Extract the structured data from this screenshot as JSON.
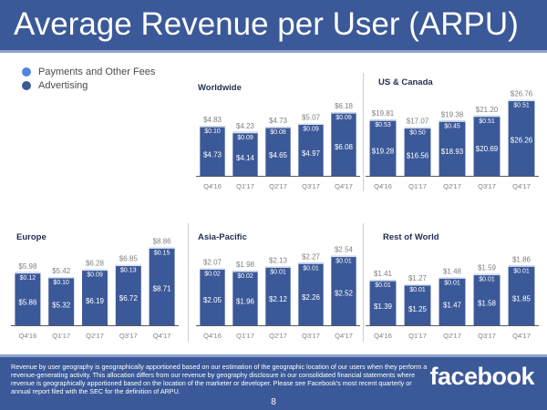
{
  "header": {
    "title": "Average Revenue per User (ARPU)"
  },
  "legend": [
    {
      "label": "Payments and Other Fees",
      "color": "#4f86e0"
    },
    {
      "label": "Advertising",
      "color": "#3b5998"
    }
  ],
  "colors": {
    "brand": "#3b5998",
    "advertising": "#3b5998",
    "payments": "#d9e4f7",
    "bar_label": "#ffffff",
    "total_label": "#7f7f7f",
    "axis": "#595959",
    "tick_label": "#7f7f7f",
    "panel_title": "#1f2d4d"
  },
  "chart_data": [
    {
      "type": "bar",
      "stacked": true,
      "title": "Worldwide",
      "categories": [
        "Q4'16",
        "Q1'17",
        "Q2'17",
        "Q3'17",
        "Q4'17"
      ],
      "series": [
        {
          "name": "Advertising",
          "values": [
            4.73,
            4.14,
            4.65,
            4.97,
            6.08
          ],
          "labels": [
            "$4.73",
            "$4.14",
            "$4.65",
            "$4.97",
            "$6.08"
          ]
        },
        {
          "name": "Payments and Other Fees",
          "values": [
            0.1,
            0.09,
            0.08,
            0.09,
            0.09
          ],
          "labels": [
            "$0.10",
            "$0.09",
            "$0.08",
            "$0.09",
            "$0.09"
          ]
        }
      ],
      "totals": [
        4.83,
        4.23,
        4.73,
        5.07,
        6.18
      ],
      "total_labels": [
        "$4.83",
        "$4.23",
        "$4.73",
        "$5.07",
        "$6.18"
      ],
      "xlabel": "",
      "ylabel": "",
      "grid": false
    },
    {
      "type": "bar",
      "stacked": true,
      "title": "US & Canada",
      "categories": [
        "Q4'16",
        "Q1'17",
        "Q2'17",
        "Q3'17",
        "Q4'17"
      ],
      "series": [
        {
          "name": "Advertising",
          "values": [
            19.28,
            16.56,
            18.93,
            20.69,
            26.26
          ],
          "labels": [
            "$19.28",
            "$16.56",
            "$18.93",
            "$20.69",
            "$26.26"
          ]
        },
        {
          "name": "Payments and Other Fees",
          "values": [
            0.53,
            0.5,
            0.45,
            0.51,
            0.51
          ],
          "labels": [
            "$0.53",
            "$0.50",
            "$0.45",
            "$0.51",
            "$0.51"
          ]
        }
      ],
      "totals": [
        19.81,
        17.07,
        19.38,
        21.2,
        26.76
      ],
      "total_labels": [
        "$19.81",
        "$17.07",
        "$19.38",
        "$21.20",
        "$26.76"
      ],
      "xlabel": "",
      "ylabel": "",
      "grid": false
    },
    {
      "type": "bar",
      "stacked": true,
      "title": "Europe",
      "categories": [
        "Q4'16",
        "Q1'17",
        "Q2'17",
        "Q3'17",
        "Q4'17"
      ],
      "series": [
        {
          "name": "Advertising",
          "values": [
            5.86,
            5.32,
            6.19,
            6.72,
            8.71
          ],
          "labels": [
            "$5.86",
            "$5.32",
            "$6.19",
            "$6.72",
            "$8.71"
          ]
        },
        {
          "name": "Payments and Other Fees",
          "values": [
            0.12,
            0.1,
            0.09,
            0.13,
            0.15
          ],
          "labels": [
            "$0.12",
            "$0.10",
            "$0.09",
            "$0.13",
            "$0.15"
          ]
        }
      ],
      "totals": [
        5.98,
        5.42,
        6.28,
        6.85,
        8.86
      ],
      "total_labels": [
        "$5.98",
        "$5.42",
        "$6.28",
        "$6.85",
        "$8.86"
      ],
      "xlabel": "",
      "ylabel": "",
      "grid": false
    },
    {
      "type": "bar",
      "stacked": true,
      "title": "Asia-Pacific",
      "categories": [
        "Q4'16",
        "Q1'17",
        "Q2'17",
        "Q3'17",
        "Q4'17"
      ],
      "series": [
        {
          "name": "Advertising",
          "values": [
            2.05,
            1.96,
            2.12,
            2.26,
            2.52
          ],
          "labels": [
            "$2.05",
            "$1.96",
            "$2.12",
            "$2.26",
            "$2.52"
          ]
        },
        {
          "name": "Payments and Other Fees",
          "values": [
            0.02,
            0.02,
            0.01,
            0.01,
            0.01
          ],
          "labels": [
            "$0.02",
            "$0.02",
            "$0.01",
            "$0.01",
            "$0.01"
          ]
        }
      ],
      "totals": [
        2.07,
        1.98,
        2.13,
        2.27,
        2.54
      ],
      "total_labels": [
        "$2.07",
        "$1.98",
        "$2.13",
        "$2.27",
        "$2.54"
      ],
      "xlabel": "",
      "ylabel": "",
      "grid": false
    },
    {
      "type": "bar",
      "stacked": true,
      "title": "Rest of World",
      "categories": [
        "Q4'16",
        "Q1'17",
        "Q2'17",
        "Q3'17",
        "Q4'17"
      ],
      "series": [
        {
          "name": "Advertising",
          "values": [
            1.39,
            1.25,
            1.47,
            1.58,
            1.85
          ],
          "labels": [
            "$1.39",
            "$1.25",
            "$1.47",
            "$1.58",
            "$1.85"
          ]
        },
        {
          "name": "Payments and Other Fees",
          "values": [
            0.01,
            0.01,
            0.01,
            0.01,
            0.01
          ],
          "labels": [
            "$0.01",
            "$0.01",
            "$0.01",
            "$0.01",
            "$0.01"
          ]
        }
      ],
      "totals": [
        1.41,
        1.27,
        1.48,
        1.59,
        1.86
      ],
      "total_labels": [
        "$1.41",
        "$1.27",
        "$1.48",
        "$1.59",
        "$1.86"
      ],
      "xlabel": "",
      "ylabel": "",
      "grid": false
    }
  ],
  "footer": {
    "disclaimer": "Revenue by user geography is geographically apportioned based on our estimation of the geographic location of our users when they perform a revenue-generating activity. This allocation differs from our revenue by geography disclosure in our consolidated financial statements where revenue is geographically apportioned based on the location of the marketer or developer. Please see Facebook's most recent quarterly or annual report filed with the SEC for the definition of ARPU.",
    "logo": "facebook",
    "page_number": "8"
  }
}
